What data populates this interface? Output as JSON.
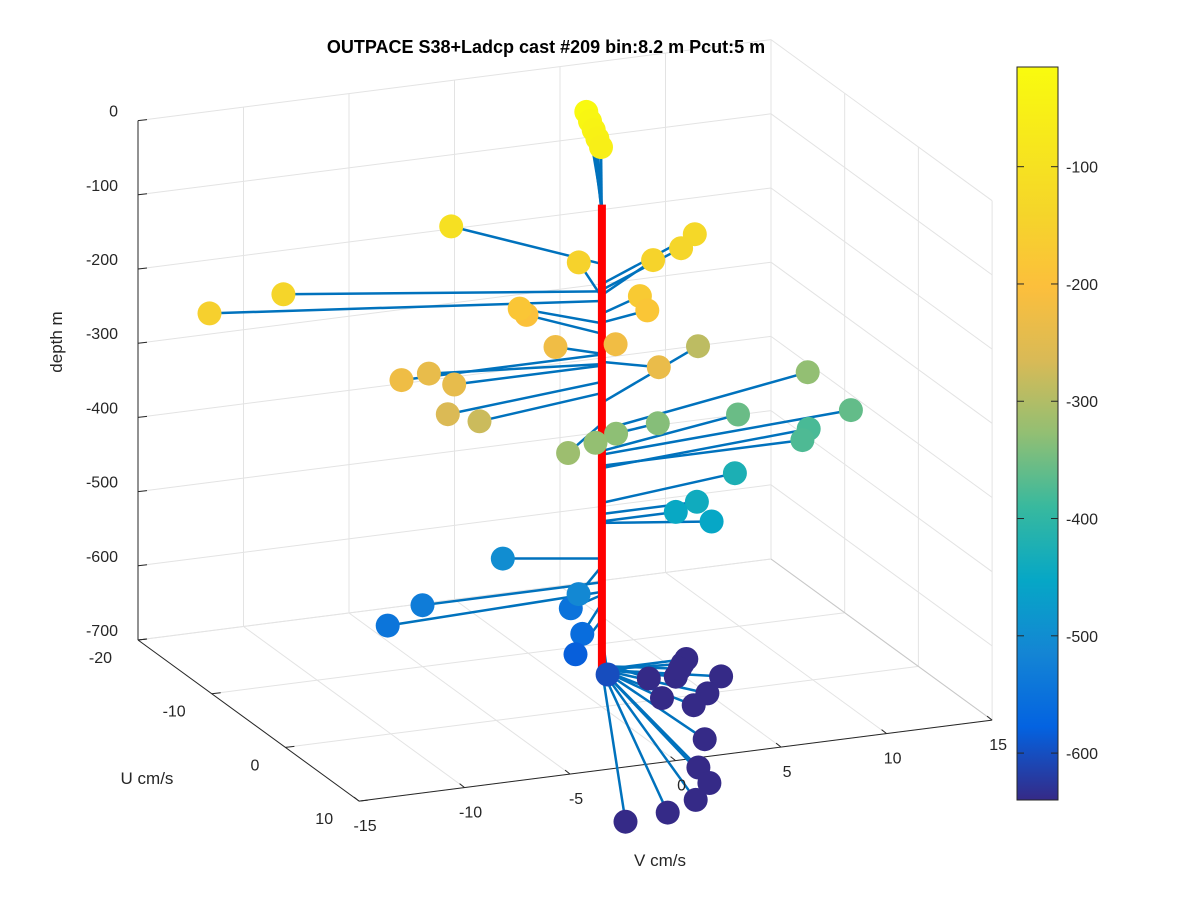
{
  "chart_data": {
    "type": "scatter3d",
    "title": "OUTPACE S38+Ladcp cast #209 bin:8.2 m  Pcut:5 m",
    "xlabel": "V cm/s",
    "ylabel": "U cm/s",
    "zlabel": "depth m",
    "xlim": [
      -15,
      15
    ],
    "ylim": [
      -20,
      10
    ],
    "zlim": [
      -700,
      0
    ],
    "xticks": [
      "-15",
      "-10",
      "-5",
      "0",
      "5",
      "10",
      "15"
    ],
    "yticks": [
      "-20",
      "-10",
      "0",
      "10"
    ],
    "zticks": [
      "-700",
      "-600",
      "-500",
      "-400",
      "-300",
      "-200",
      "-100",
      "0"
    ],
    "colorbar": {
      "limits": [
        -640,
        -15
      ],
      "ticks": [
        "-600",
        "-500",
        "-400",
        "-300",
        "-200",
        "-100"
      ],
      "colormap": "parula"
    },
    "profile_color": "#ff0000",
    "stick_color": "#0072bd",
    "grid": true,
    "points": [
      {
        "v": 4.5,
        "u": -15.0,
        "depth": -23
      },
      {
        "v": 4.5,
        "u": -14.5,
        "depth": -32
      },
      {
        "v": 4.5,
        "u": -14.0,
        "depth": -40
      },
      {
        "v": 4.5,
        "u": -13.5,
        "depth": -48
      },
      {
        "v": 4.5,
        "u": -13.0,
        "depth": -56
      },
      {
        "v": 6.5,
        "u": -6.0,
        "depth": -130
      },
      {
        "v": 5.5,
        "u": -5.0,
        "depth": -138
      },
      {
        "v": 4.0,
        "u": -4.5,
        "depth": -145
      },
      {
        "v": 1.0,
        "u": -6.0,
        "depth": -148
      },
      {
        "v": 2.5,
        "u": -2.0,
        "depth": -170
      },
      {
        "v": 2.5,
        "u": -1.0,
        "depth": -182
      },
      {
        "v": -16.5,
        "u": -6.0,
        "depth": -153
      },
      {
        "v": -13.0,
        "u": -6.0,
        "depth": -140
      },
      {
        "v": -4.0,
        "u": -9.0,
        "depth": -103
      },
      {
        "v": -9.5,
        "u": 0.0,
        "depth": -225
      },
      {
        "v": -7.0,
        "u": 0.0,
        "depth": -240
      },
      {
        "v": -2.5,
        "u": -4.0,
        "depth": -183
      },
      {
        "v": -2.0,
        "u": -4.5,
        "depth": -197
      },
      {
        "v": -7.5,
        "u": -2.0,
        "depth": -238
      },
      {
        "v": -8.0,
        "u": 2.0,
        "depth": -262
      },
      {
        "v": -6.5,
        "u": 2.0,
        "depth": -277
      },
      {
        "v": -1.5,
        "u": -2.0,
        "depth": -224
      },
      {
        "v": 1.0,
        "u": -1.0,
        "depth": -222
      },
      {
        "v": 2.0,
        "u": 2.0,
        "depth": -235
      },
      {
        "v": -3.0,
        "u": 4.0,
        "depth": -318
      },
      {
        "v": -1.0,
        "u": 2.0,
        "depth": -326
      },
      {
        "v": 0.5,
        "u": 0.5,
        "depth": -330
      },
      {
        "v": 7.0,
        "u": -7.0,
        "depth": -290
      },
      {
        "v": 3.0,
        "u": -1.0,
        "depth": -336
      },
      {
        "v": 7.5,
        "u": -3.0,
        "depth": -355
      },
      {
        "v": 11.5,
        "u": -5.0,
        "depth": -327
      },
      {
        "v": 12.5,
        "u": -2.0,
        "depth": -360
      },
      {
        "v": 10.5,
        "u": -2.0,
        "depth": -378
      },
      {
        "v": 9.5,
        "u": 0.0,
        "depth": -375
      },
      {
        "v": 7.0,
        "u": -2.0,
        "depth": -425
      },
      {
        "v": 4.5,
        "u": 0.0,
        "depth": -440
      },
      {
        "v": 4.5,
        "u": 2.0,
        "depth": -452
      },
      {
        "v": 3.5,
        "u": 0.0,
        "depth": -450
      },
      {
        "v": -2.5,
        "u": 4.0,
        "depth": -510
      },
      {
        "v": -8.5,
        "u": 0.0,
        "depth": -532
      },
      {
        "v": -10.5,
        "u": 1.0,
        "depth": -545
      },
      {
        "v": -4.0,
        "u": -2.0,
        "depth": -500
      },
      {
        "v": -2.0,
        "u": 1.5,
        "depth": -549
      },
      {
        "v": -2.5,
        "u": 4.5,
        "depth": -560
      },
      {
        "v": -2.0,
        "u": 6.5,
        "depth": -602
      },
      {
        "v": -3.0,
        "u": 5.0,
        "depth": -582
      },
      {
        "v": 1.0,
        "u": 3.5,
        "depth": -640
      },
      {
        "v": 3.0,
        "u": 2.0,
        "depth": -645
      },
      {
        "v": 4.0,
        "u": 0.0,
        "depth": -650
      },
      {
        "v": 4.0,
        "u": -0.5,
        "depth": -660
      },
      {
        "v": 3.5,
        "u": 0.0,
        "depth": -672
      },
      {
        "v": 2.5,
        "u": 1.0,
        "depth": -690
      },
      {
        "v": 6.0,
        "u": -1.0,
        "depth": -688
      },
      {
        "v": 5.0,
        "u": 0.0,
        "depth": -700
      },
      {
        "v": 4.0,
        "u": 1.0,
        "depth": -705
      },
      {
        "v": 4.0,
        "u": 2.5,
        "depth": -740
      },
      {
        "v": 3.0,
        "u": 4.5,
        "depth": -760
      },
      {
        "v": 3.0,
        "u": 6.0,
        "depth": -770
      },
      {
        "v": 2.0,
        "u": 7.0,
        "depth": -782
      },
      {
        "v": 0.5,
        "u": 7.5,
        "depth": -790
      },
      {
        "v": -1.5,
        "u": 7.5,
        "depth": -795
      }
    ]
  }
}
